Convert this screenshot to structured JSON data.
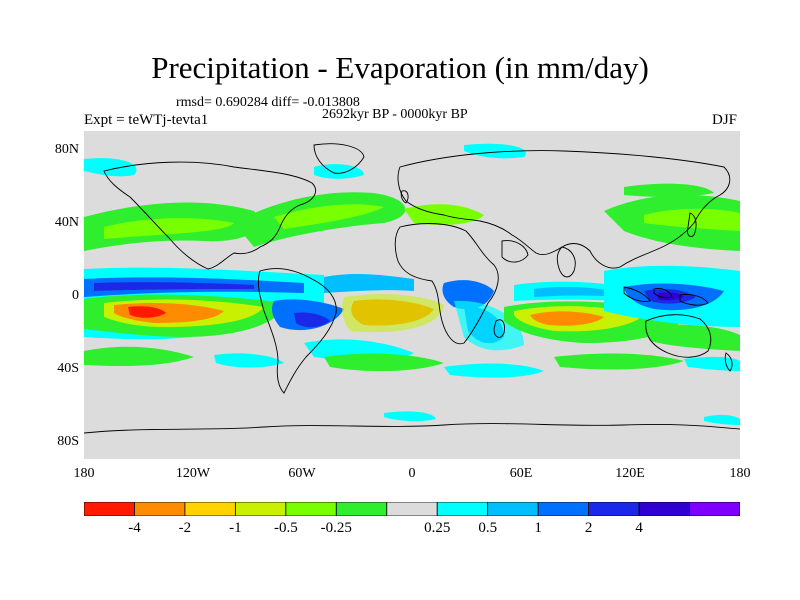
{
  "title": "Precipitation - Evaporation (in mm/day)",
  "stats_line": "rmsd= 0.690284 diff= -0.013808",
  "period": "2692kyr BP - 0000kyr BP",
  "experiment": "Expt = teWTj-tevta1",
  "season": "DJF",
  "map": {
    "projection": "cylindrical equidistant",
    "lon_range": [
      -180,
      180
    ],
    "lat_range": [
      -90,
      90
    ],
    "lat_ticks": [
      "80N",
      "40N",
      "0",
      "40S",
      "80S"
    ],
    "lon_ticks": [
      "180",
      "120W",
      "60W",
      "0",
      "60E",
      "120E",
      "180"
    ]
  },
  "colorbar": {
    "labels": [
      "-4",
      "-2",
      "-1",
      "-0.5",
      "-0.25",
      "0.25",
      "0.5",
      "1",
      "2",
      "4"
    ],
    "colors": [
      "#ff1a00",
      "#ff8c00",
      "#ffd200",
      "#c8f000",
      "#78ff00",
      "#2eee2e",
      "#dcdcdc",
      "#00ffff",
      "#00beff",
      "#0070ff",
      "#1c28e8",
      "#3000d0",
      "#8000ff"
    ]
  }
}
